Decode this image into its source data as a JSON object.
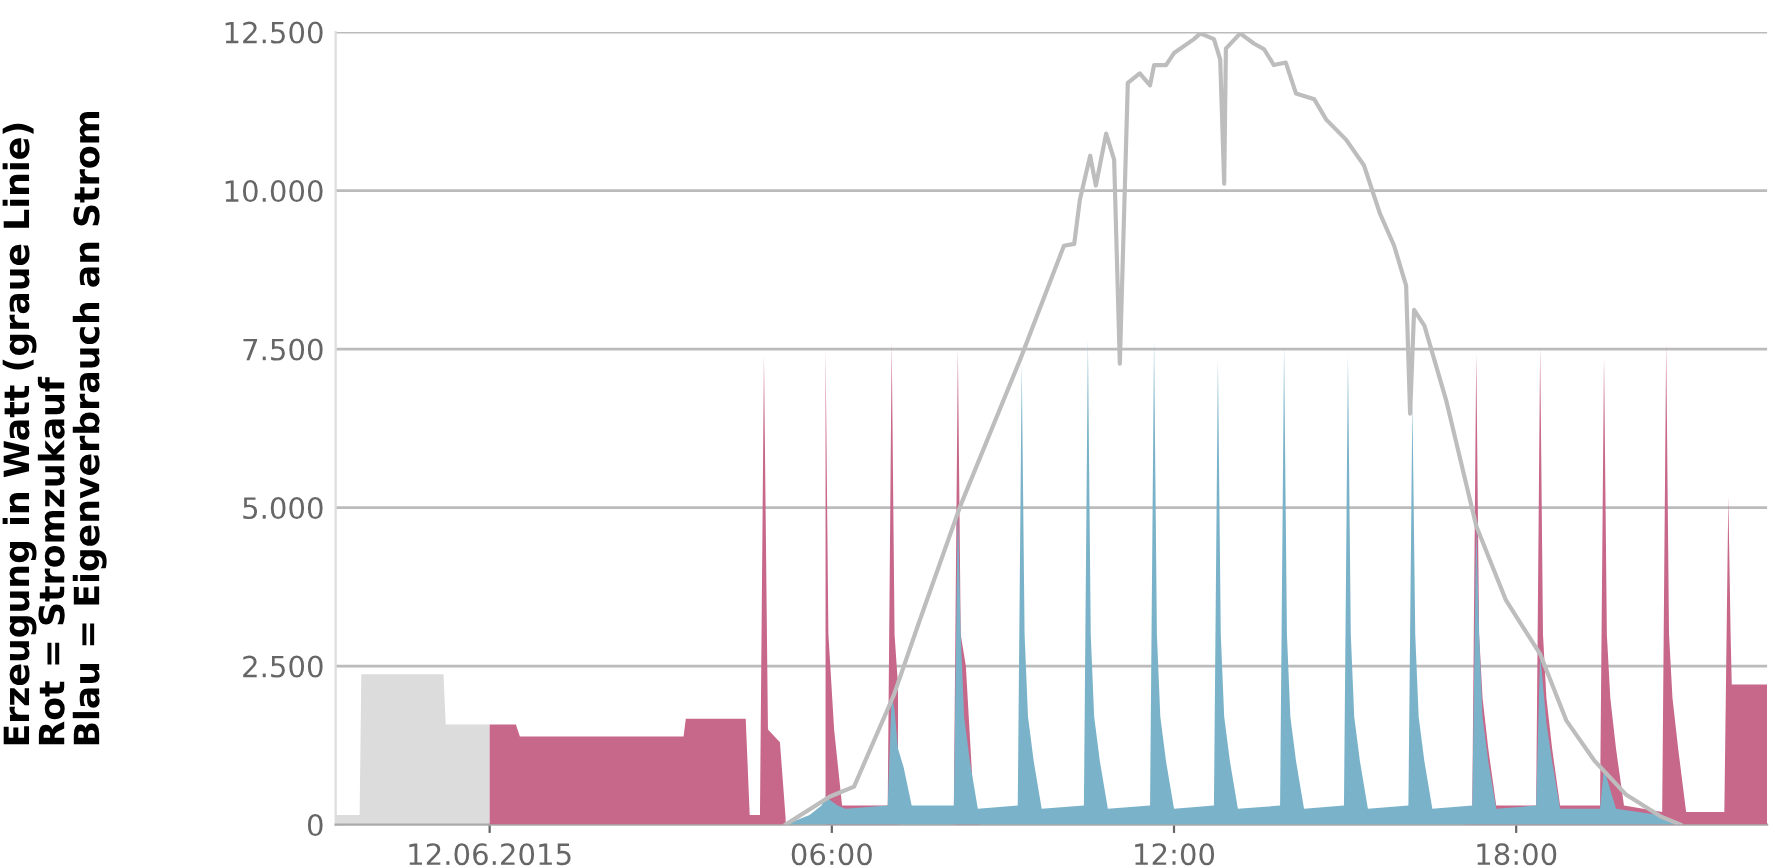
{
  "chart_data": {
    "type": "area",
    "ylabel": "Erzeugung in Watt (graue Linie)\nRot = Stromzukauf\nBlau = Eigenverbrauch an Strom",
    "xlim": [
      -2.7,
      22.4
    ],
    "xticks": [
      {
        "value": 0,
        "label": "12.06.2015"
      },
      {
        "value": 6,
        "label": "06:00"
      },
      {
        "value": 12,
        "label": "12:00"
      },
      {
        "value": 18,
        "label": "18:00"
      }
    ],
    "ylim": [
      0,
      12500
    ],
    "yticks": [
      0,
      {
        "value": 2500,
        "label": "2.500"
      },
      {
        "value": 5000,
        "label": "5.000"
      },
      {
        "value": 7500,
        "label": "7.500"
      },
      {
        "value": 10000,
        "label": "10.000"
      },
      {
        "value": 12500,
        "label": "12.500"
      }
    ],
    "grid": "y",
    "series": [
      {
        "color": "#dcdcdc",
        "x": [
          -2.7,
          -2.28,
          -2.25,
          -0.81,
          -0.77,
          0
        ],
        "values": [
          150,
          150,
          2370,
          2370,
          1580,
          1580
        ]
      },
      {
        "color": "#c7678a",
        "x": [
          0,
          0.46,
          0.53,
          3.4,
          3.44,
          4.49,
          4.56,
          4.74,
          4.81,
          4.88,
          5.09,
          5.19,
          5.82,
          5.89,
          5.94,
          6.04,
          6.18,
          6.98,
          7.05,
          7.1,
          7.16,
          7.33,
          8.14,
          8.21,
          8.26,
          8.35,
          8.49,
          8.6,
          12.0,
          17.1,
          17.23,
          17.3,
          17.35,
          17.41,
          17.51,
          17.65,
          18.35,
          18.42,
          18.47,
          18.53,
          18.63,
          18.77,
          19.47,
          19.54,
          19.59,
          19.65,
          19.75,
          19.89,
          20.56,
          20.63,
          20.68,
          20.74,
          20.84,
          20.98,
          21.65,
          21.72,
          21.76,
          21.78,
          22.4
        ],
        "values": [
          1580,
          1580,
          1390,
          1390,
          1670,
          1670,
          150,
          150,
          7390,
          1500,
          1300,
          100,
          null,
          7500,
          3000,
          1500,
          300,
          300,
          7600,
          3000,
          2200,
          null,
          300,
          7500,
          3000,
          2500,
          300,
          0,
          null,
          0,
          300,
          7430,
          3000,
          2000,
          1200,
          300,
          300,
          7550,
          3000,
          2000,
          1200,
          300,
          300,
          7390,
          3000,
          2000,
          1200,
          300,
          200,
          7590,
          3000,
          2000,
          1200,
          200,
          200,
          5180,
          3000,
          2210,
          2210
        ]
      },
      {
        "color": "#7ab3c9",
        "x": [
          5.19,
          5.61,
          5.82,
          5.89,
          5.95,
          6.1,
          6.24,
          6.98,
          7.05,
          7.1,
          7.16,
          7.26,
          7.4,
          8.14,
          8.21,
          8.26,
          8.32,
          8.42,
          8.56,
          9.26,
          9.33,
          9.38,
          9.44,
          9.54,
          9.68,
          10.42,
          10.49,
          10.54,
          10.6,
          10.7,
          10.84,
          11.58,
          11.65,
          11.7,
          11.76,
          11.86,
          12.0,
          12.7,
          12.77,
          12.82,
          12.88,
          12.98,
          13.12,
          13.86,
          13.93,
          13.98,
          14.04,
          14.14,
          14.28,
          14.98,
          15.05,
          15.1,
          15.16,
          15.26,
          15.4,
          16.11,
          16.18,
          16.23,
          16.29,
          16.39,
          16.53,
          17.23,
          17.3,
          17.35,
          17.41,
          17.51,
          17.65,
          18.35,
          18.42,
          18.47,
          18.53,
          18.63,
          18.77,
          19.47,
          19.54,
          19.6,
          19.75,
          20.5,
          20.88
        ],
        "values": [
          0,
          150,
          300,
          440,
          400,
          300,
          250,
          300,
          2050,
          1800,
          1200,
          900,
          300,
          300,
          5020,
          3000,
          1700,
          1000,
          250,
          300,
          7270,
          3000,
          1700,
          1000,
          250,
          300,
          7650,
          3000,
          1700,
          1000,
          250,
          300,
          7650,
          3000,
          1700,
          1000,
          250,
          300,
          7330,
          3000,
          1700,
          1000,
          250,
          300,
          7550,
          3000,
          1700,
          1000,
          250,
          300,
          7390,
          3000,
          1700,
          1000,
          250,
          300,
          6700,
          3000,
          1700,
          1000,
          250,
          300,
          4710,
          3000,
          1700,
          1000,
          250,
          300,
          2690,
          2200,
          1600,
          1000,
          250,
          250,
          900,
          700,
          250,
          150,
          0
        ]
      },
      {
        "type": "line",
        "color": "#bdbdbd",
        "x": [
          5.19,
          5.96,
          6.39,
          7.09,
          7.54,
          8.25,
          9.3,
          10.07,
          10.25,
          10.35,
          10.53,
          10.63,
          10.81,
          10.95,
          11.05,
          11.19,
          11.4,
          11.58,
          11.65,
          11.86,
          12.0,
          12.35,
          12.46,
          12.7,
          12.81,
          12.88,
          12.91,
          13.16,
          13.4,
          13.58,
          13.75,
          13.96,
          14.14,
          14.46,
          14.67,
          15.02,
          15.33,
          15.61,
          15.86,
          16.07,
          16.14,
          16.21,
          16.39,
          16.77,
          17.3,
          17.82,
          18.42,
          18.88,
          19.37,
          19.93,
          20.53,
          20.88
        ],
        "values": [
          0,
          440,
          600,
          2050,
          3220,
          5020,
          7330,
          9130,
          9160,
          9860,
          10550,
          10080,
          10900,
          10490,
          7270,
          11700,
          11850,
          11660,
          11980,
          11980,
          12170,
          12390,
          12480,
          12390,
          12070,
          10110,
          12240,
          12480,
          12320,
          12230,
          11980,
          12020,
          11530,
          11440,
          11120,
          10800,
          10400,
          9640,
          9130,
          8500,
          6480,
          8120,
          7870,
          6700,
          4710,
          3540,
          2690,
          1640,
          1010,
          470,
          130,
          0
        ]
      }
    ]
  }
}
